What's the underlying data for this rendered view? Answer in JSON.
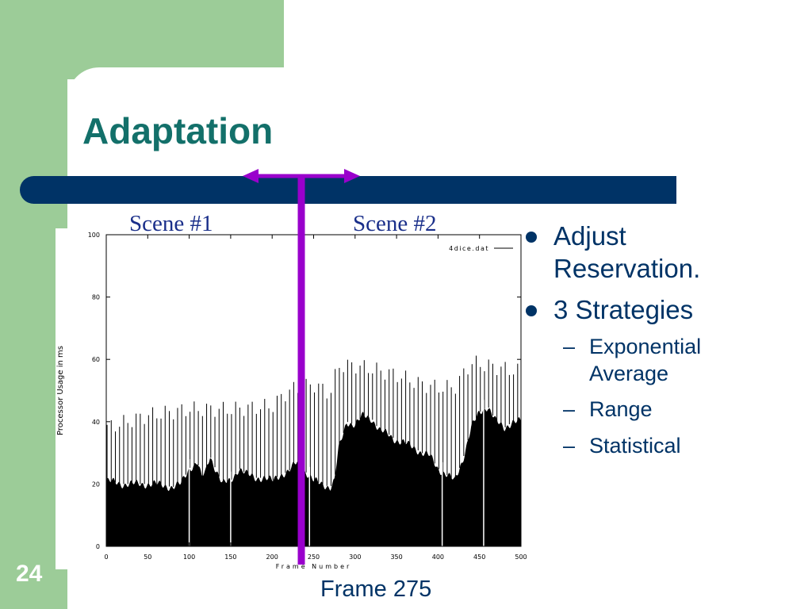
{
  "slide": {
    "title": "Adaptation",
    "number": "24"
  },
  "annotations": {
    "scene1": "Scene #1",
    "scene2": "Scene #2",
    "frame": "Frame 275"
  },
  "bullets": [
    {
      "text": "Adjust Reservation.",
      "level": 1
    },
    {
      "text": "3 Strategies",
      "level": 1
    },
    {
      "text": "Exponential Average",
      "level": 2
    },
    {
      "text": "Range",
      "level": 2
    },
    {
      "text": "Statistical",
      "level": 2
    }
  ],
  "colors": {
    "green": "#9ccc98",
    "navy": "#003366",
    "title": "#13706a",
    "purple": "#9900cc"
  },
  "chart_data": {
    "type": "area",
    "xlabel": "Frame Number",
    "ylabel": "Processor Usage in ms",
    "legend": "4dice.dat",
    "legend_position": "top-right",
    "xlim": [
      0,
      500
    ],
    "ylim": [
      0,
      100
    ],
    "xticks": [
      "0",
      "50",
      "100",
      "150",
      "200",
      "250",
      "300",
      "350",
      "400",
      "450",
      "500"
    ],
    "yticks": [
      "0",
      "20",
      "40",
      "60",
      "80",
      "100"
    ],
    "grid": false,
    "spike_period": 5,
    "base_curve": {
      "x": [
        0,
        20,
        40,
        60,
        80,
        90,
        100,
        110,
        115,
        120,
        125,
        130,
        140,
        150,
        160,
        170,
        180,
        190,
        200,
        210,
        220,
        230,
        240,
        250,
        260,
        270,
        275,
        280,
        290,
        300,
        310,
        320,
        330,
        340,
        350,
        360,
        370,
        380,
        390,
        400,
        410,
        420,
        430,
        440,
        450,
        460,
        470,
        480,
        490,
        500
      ],
      "y": [
        21,
        20,
        20,
        20,
        19,
        20,
        25,
        27,
        22,
        24,
        29,
        26,
        20,
        21,
        25,
        23,
        22,
        22,
        21,
        23,
        24,
        27,
        24,
        21,
        20,
        19,
        21,
        31,
        40,
        39,
        42,
        41,
        37,
        36,
        34,
        33,
        32,
        30,
        29,
        25,
        23,
        21,
        28,
        38,
        43,
        45,
        40,
        38,
        40,
        40
      ]
    },
    "spike_curve": {
      "x": [
        0,
        50,
        100,
        150,
        200,
        220,
        250,
        270,
        280,
        300,
        320,
        350,
        380,
        400,
        420,
        440,
        460,
        480,
        500
      ],
      "y": [
        38,
        42,
        44,
        44,
        45,
        50,
        52,
        49,
        58,
        58,
        57,
        55,
        52,
        51,
        51,
        59,
        58,
        57,
        56
      ]
    },
    "white_gaps_x": [
      100,
      150,
      245,
      405,
      455
    ]
  }
}
